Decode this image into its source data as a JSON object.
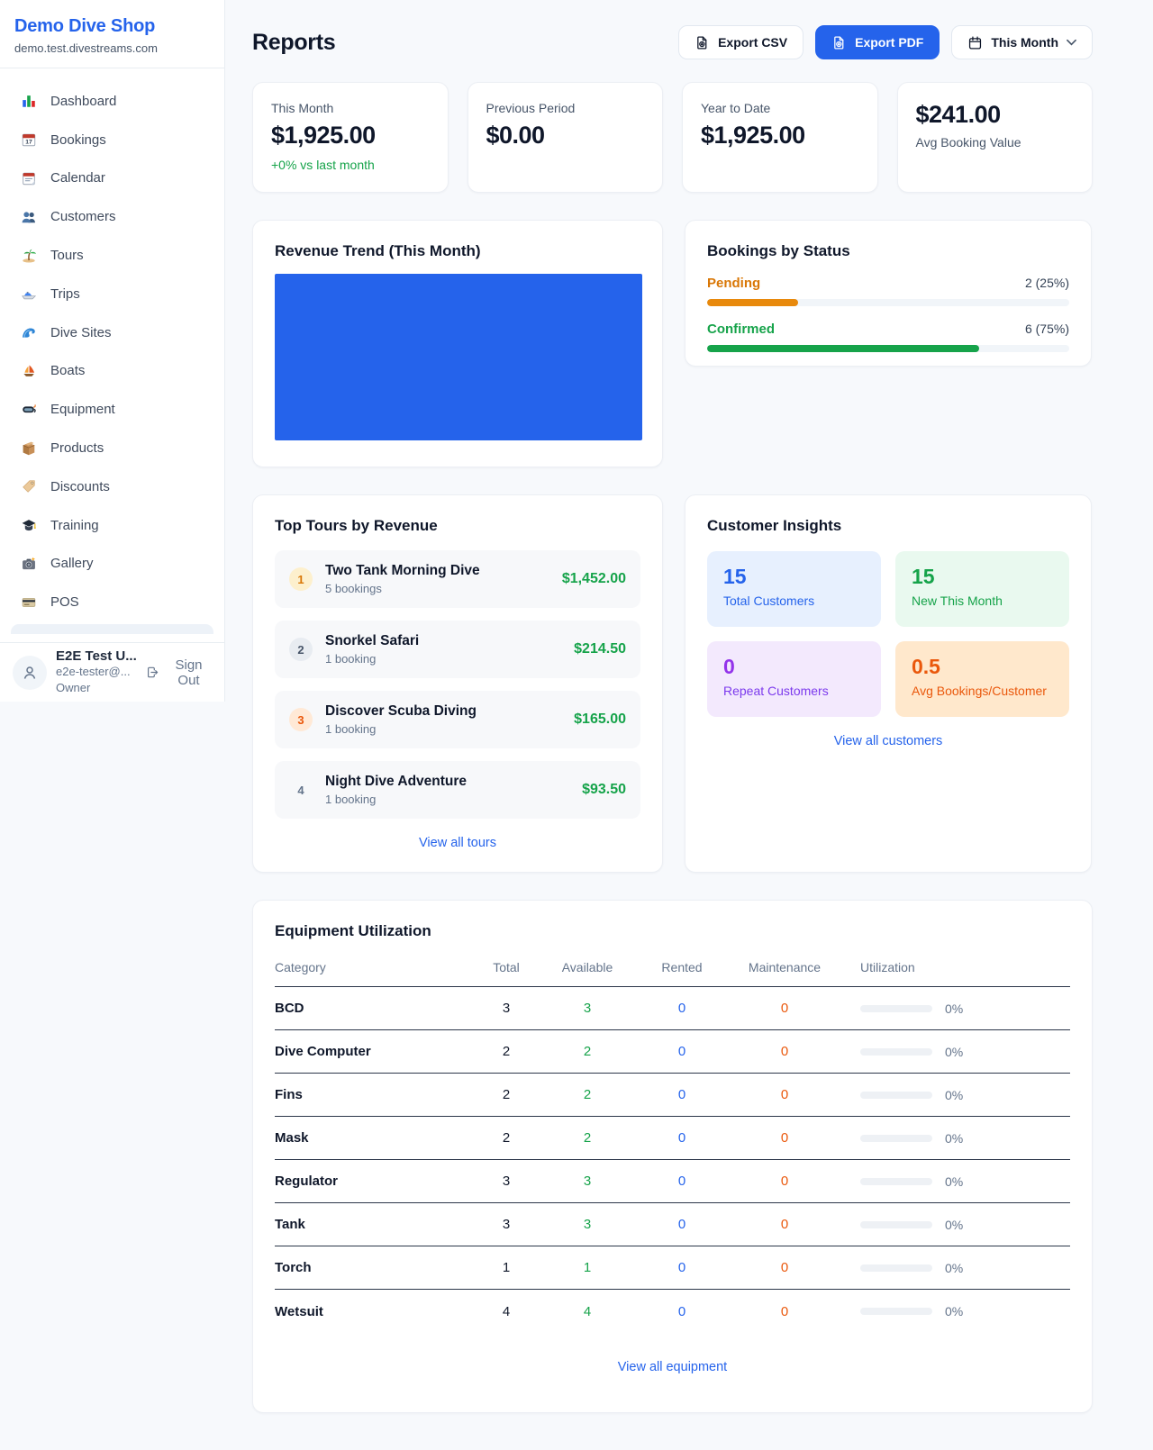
{
  "brand": {
    "name": "Demo Dive Shop",
    "domain": "demo.test.divestreams.com"
  },
  "sidebar": {
    "items": [
      {
        "id": "sidebar-item-dashboard",
        "icon": "icon-dashboard",
        "icon_name": "bar-chart-icon",
        "label": "Dashboard"
      },
      {
        "id": "sidebar-item-bookings",
        "icon": "icon-bookings",
        "icon_name": "calendar-date-icon",
        "label": "Bookings"
      },
      {
        "id": "sidebar-item-calendar",
        "icon": "icon-calendar",
        "icon_name": "tear-off-calendar-icon",
        "label": "Calendar"
      },
      {
        "id": "sidebar-item-customers",
        "icon": "icon-customers",
        "icon_name": "people-icon",
        "label": "Customers"
      },
      {
        "id": "sidebar-item-tours",
        "icon": "icon-tours",
        "icon_name": "palm-island-icon",
        "label": "Tours"
      },
      {
        "id": "sidebar-item-trips",
        "icon": "icon-trips",
        "icon_name": "speedboat-icon",
        "label": "Trips"
      },
      {
        "id": "sidebar-item-dive-sites",
        "icon": "icon-dive-sites",
        "icon_name": "wave-icon",
        "label": "Dive Sites"
      },
      {
        "id": "sidebar-item-boats",
        "icon": "icon-boats",
        "icon_name": "sailboat-icon",
        "label": "Boats"
      },
      {
        "id": "sidebar-item-equipment",
        "icon": "icon-equipment",
        "icon_name": "dive-mask-icon",
        "label": "Equipment"
      },
      {
        "id": "sidebar-item-products",
        "icon": "icon-products",
        "icon_name": "package-icon",
        "label": "Products"
      },
      {
        "id": "sidebar-item-discounts",
        "icon": "icon-discounts",
        "icon_name": "tag-icon",
        "label": "Discounts"
      },
      {
        "id": "sidebar-item-training",
        "icon": "icon-training",
        "icon_name": "graduation-cap-icon",
        "label": "Training"
      },
      {
        "id": "sidebar-item-gallery",
        "icon": "icon-gallery",
        "icon_name": "camera-icon",
        "label": "Gallery"
      },
      {
        "id": "sidebar-item-pos",
        "icon": "icon-pos",
        "icon_name": "credit-card-icon",
        "label": "POS"
      }
    ]
  },
  "user": {
    "name": "E2E Test U...",
    "email": "e2e-tester@...",
    "role": "Owner",
    "sign_out": "Sign Out"
  },
  "header": {
    "title": "Reports",
    "export_csv": "Export CSV",
    "export_pdf": "Export PDF",
    "period": "This Month"
  },
  "stats": [
    {
      "label": "This Month",
      "value": "$1,925.00",
      "delta": "+0% vs last month"
    },
    {
      "label": "Previous Period",
      "value": "$0.00"
    },
    {
      "label": "Year to Date",
      "value": "$1,925.00"
    },
    {
      "label": "Avg Booking Value",
      "value": "$241.00"
    }
  ],
  "revenue_trend": {
    "title": "Revenue Trend (This Month)",
    "fill_color": "#2563eb"
  },
  "bookings_by_status": {
    "title": "Bookings by Status",
    "rows": [
      {
        "label": "Pending",
        "value": "2 (25%)",
        "pct": 25,
        "fg": "#d97706",
        "bar": "#e8890c"
      },
      {
        "label": "Confirmed",
        "value": "6 (75%)",
        "pct": 75,
        "fg": "#16a34a",
        "bar": "#16a34a"
      }
    ]
  },
  "top_tours": {
    "title": "Top Tours by Revenue",
    "view_all": "View all tours",
    "items": [
      {
        "rank": "1",
        "name": "Two Tank Morning Dive",
        "bookings": "5 bookings",
        "amount": "$1,452.00",
        "badge_bg": "#fdf0cd",
        "badge_fg": "#d97706"
      },
      {
        "rank": "2",
        "name": "Snorkel Safari",
        "bookings": "1 booking",
        "amount": "$214.50",
        "badge_bg": "#e8ecf1",
        "badge_fg": "#475569"
      },
      {
        "rank": "3",
        "name": "Discover Scuba Diving",
        "bookings": "1 booking",
        "amount": "$165.00",
        "badge_bg": "#ffe9d6",
        "badge_fg": "#ea580c"
      },
      {
        "rank": "4",
        "name": "Night Dive Adventure",
        "bookings": "1 booking",
        "amount": "$93.50",
        "badge_bg": "transparent",
        "badge_fg": "#64748b"
      }
    ]
  },
  "customer_insights": {
    "title": "Customer Insights",
    "view_all": "View all customers",
    "tiles": [
      {
        "value": "15",
        "label": "Total Customers",
        "bg": "#e7f0fe",
        "value_fg": "#2563eb",
        "label_fg": "#2563eb"
      },
      {
        "value": "15",
        "label": "New This Month",
        "bg": "#e9f9ef",
        "value_fg": "#16a34a",
        "label_fg": "#16a34a"
      },
      {
        "value": "0",
        "label": "Repeat Customers",
        "bg": "#f3e9fd",
        "value_fg": "#9333ea",
        "label_fg": "#7c3aed"
      },
      {
        "value": "0.5",
        "label": "Avg Bookings/Customer",
        "bg": "#ffe8cc",
        "value_fg": "#ea580c",
        "label_fg": "#ea580c"
      }
    ]
  },
  "equipment": {
    "title": "Equipment Utilization",
    "view_all": "View all equipment",
    "columns": [
      "Category",
      "Total",
      "Available",
      "Rented",
      "Maintenance",
      "Utilization"
    ],
    "rows": [
      {
        "category": "BCD",
        "total": "3",
        "available": "3",
        "rented": "0",
        "maintenance": "0",
        "utilization_pct": 0,
        "utilization": "0%"
      },
      {
        "category": "Dive Computer",
        "total": "2",
        "available": "2",
        "rented": "0",
        "maintenance": "0",
        "utilization_pct": 0,
        "utilization": "0%"
      },
      {
        "category": "Fins",
        "total": "2",
        "available": "2",
        "rented": "0",
        "maintenance": "0",
        "utilization_pct": 0,
        "utilization": "0%"
      },
      {
        "category": "Mask",
        "total": "2",
        "available": "2",
        "rented": "0",
        "maintenance": "0",
        "utilization_pct": 0,
        "utilization": "0%"
      },
      {
        "category": "Regulator",
        "total": "3",
        "available": "3",
        "rented": "0",
        "maintenance": "0",
        "utilization_pct": 0,
        "utilization": "0%"
      },
      {
        "category": "Tank",
        "total": "3",
        "available": "3",
        "rented": "0",
        "maintenance": "0",
        "utilization_pct": 0,
        "utilization": "0%"
      },
      {
        "category": "Torch",
        "total": "1",
        "available": "1",
        "rented": "0",
        "maintenance": "0",
        "utilization_pct": 0,
        "utilization": "0%"
      },
      {
        "category": "Wetsuit",
        "total": "4",
        "available": "4",
        "rented": "0",
        "maintenance": "0",
        "utilization_pct": 0,
        "utilization": "0%"
      }
    ]
  },
  "colors": {
    "accent": "#2563eb",
    "positive": "#16a34a",
    "pending": "#d97706",
    "maintenance": "#ea580c",
    "repeat": "#9333ea"
  },
  "chart_data": [
    {
      "type": "area",
      "title": "Revenue Trend (This Month)",
      "color": "#2563eb",
      "note": "plot area renders as one solid blue filled block; no axes, ticks, gridlines or data labels are visible"
    },
    {
      "type": "bar",
      "title": "Bookings by Status",
      "categories": [
        "Pending",
        "Confirmed"
      ],
      "values": [
        2,
        6
      ],
      "value_labels": [
        "2 (25%)",
        "6 (75%)"
      ],
      "percent": [
        25,
        75
      ],
      "colors": [
        "#d97706",
        "#16a34a"
      ],
      "legend_position": "none"
    }
  ]
}
